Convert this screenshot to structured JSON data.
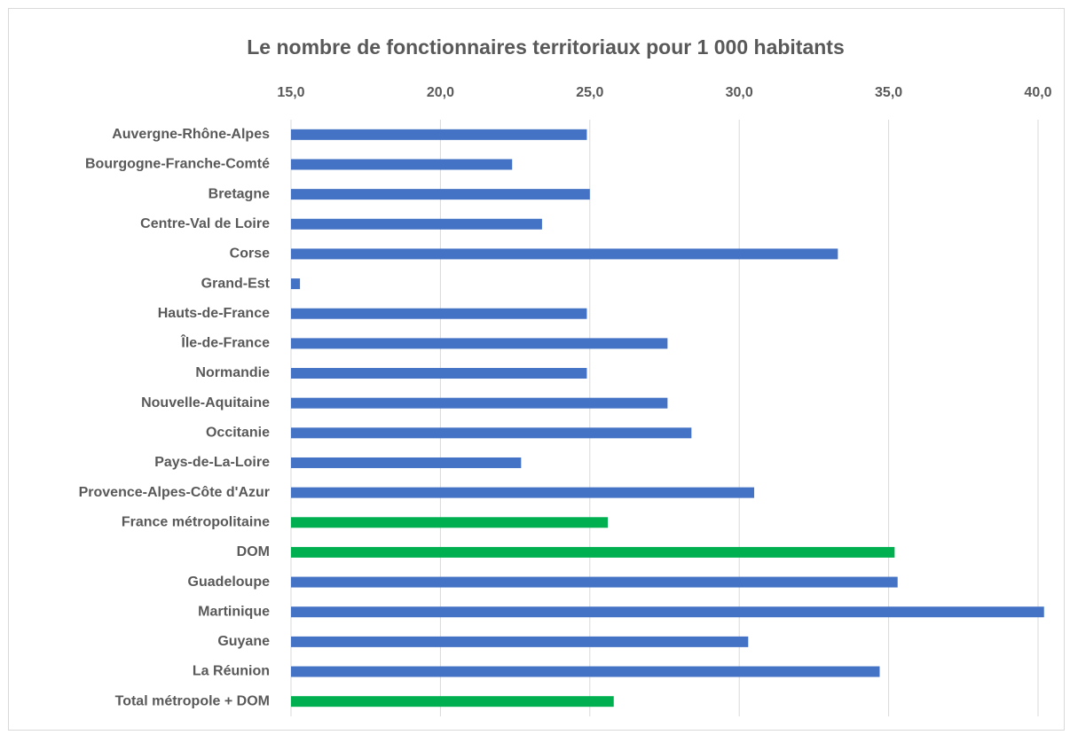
{
  "chart_data": {
    "type": "barh",
    "title": "Le nombre de fonctionnaires territoriaux pour 1 000 habitants",
    "categories": [
      "Auvergne-Rhône-Alpes",
      "Bourgogne-Franche-Comté",
      "Bretagne",
      "Centre-Val de Loire",
      "Corse",
      "Grand-Est",
      "Hauts-de-France",
      "Île-de-France",
      "Normandie",
      "Nouvelle-Aquitaine",
      "Occitanie",
      "Pays-de-La-Loire",
      "Provence-Alpes-Côte d'Azur",
      "France métropolitaine",
      "DOM",
      "Guadeloupe",
      "Martinique",
      "Guyane",
      "La Réunion",
      "Total métropole + DOM"
    ],
    "values": [
      24.9,
      22.4,
      25.0,
      23.4,
      33.3,
      15.3,
      24.9,
      27.6,
      24.9,
      27.6,
      28.4,
      22.7,
      30.5,
      25.6,
      35.2,
      35.3,
      40.2,
      30.3,
      34.7,
      25.8
    ],
    "colors": [
      "#4472c4",
      "#4472c4",
      "#4472c4",
      "#4472c4",
      "#4472c4",
      "#4472c4",
      "#4472c4",
      "#4472c4",
      "#4472c4",
      "#4472c4",
      "#4472c4",
      "#4472c4",
      "#4472c4",
      "#00b050",
      "#00b050",
      "#4472c4",
      "#4472c4",
      "#4472c4",
      "#4472c4",
      "#00b050"
    ],
    "xlim": [
      15,
      40.5
    ],
    "xticks": [
      {
        "value": 15,
        "label": "15,0"
      },
      {
        "value": 20,
        "label": "20,0"
      },
      {
        "value": 25,
        "label": "25,0"
      },
      {
        "value": 30,
        "label": "30,0"
      },
      {
        "value": 35,
        "label": "35,0"
      },
      {
        "value": 40,
        "label": "40,0"
      }
    ],
    "grid": true
  }
}
